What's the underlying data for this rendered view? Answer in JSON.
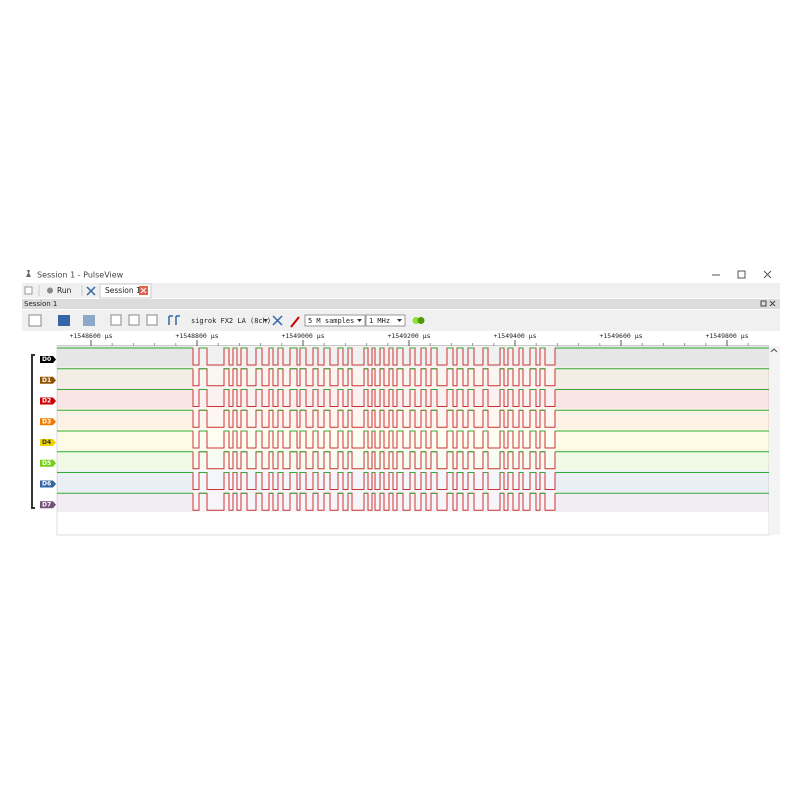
{
  "window": {
    "title": "Session 1 - PulseView"
  },
  "tabs": {
    "run": "Run",
    "session": "Session 1"
  },
  "panel": {
    "title": "Session 1"
  },
  "toolbar": {
    "device": "sigrok FX2 LA (8ch)",
    "samples": "5 M samples",
    "rate": "1 MHz"
  },
  "ruler": {
    "ticks": [
      "+1548600 µs",
      "+1548800 µs",
      "+1549000 µs",
      "+1549200 µs",
      "+1549400 µs",
      "+1549600 µs",
      "+1549800 µs"
    ]
  },
  "channels": [
    {
      "name": "D0",
      "color": "#000000"
    },
    {
      "name": "D1",
      "color": "#8f5202"
    },
    {
      "name": "D2",
      "color": "#cc0000"
    },
    {
      "name": "D3",
      "color": "#f57900"
    },
    {
      "name": "D4",
      "color": "#edd400"
    },
    {
      "name": "D5",
      "color": "#73d216"
    },
    {
      "name": "D6",
      "color": "#3465a4"
    },
    {
      "name": "D7",
      "color": "#75507b"
    }
  ]
}
